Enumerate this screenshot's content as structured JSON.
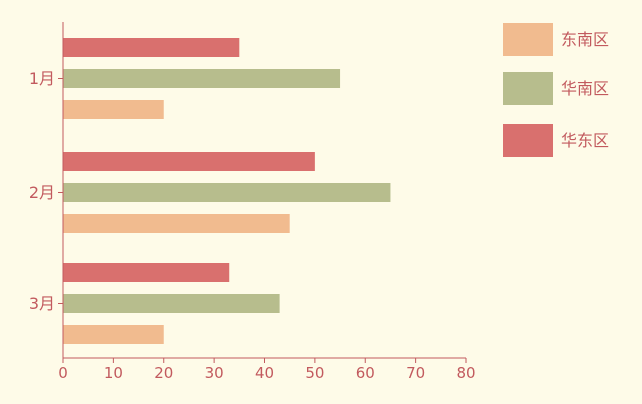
{
  "chart_data": {
    "type": "bar",
    "orientation": "horizontal",
    "categories": [
      "1月",
      "2月",
      "3月"
    ],
    "series": [
      {
        "name": "华东区",
        "color": "#d9706e",
        "values": [
          35,
          50,
          33
        ]
      },
      {
        "name": "华南区",
        "color": "#b7bd8d",
        "values": [
          55,
          65,
          43
        ]
      },
      {
        "name": "东南区",
        "color": "#f1bb8f",
        "values": [
          20,
          45,
          20
        ]
      }
    ],
    "xlim": [
      0,
      80
    ],
    "xticks": [
      0,
      10,
      20,
      30,
      40,
      50,
      60,
      70,
      80
    ],
    "grid": false,
    "legend_position": "top-right",
    "legend_order": [
      "东南区",
      "华南区",
      "华东区"
    ]
  },
  "colors": {
    "background": "#fefbe8",
    "axis": "#c25a5e",
    "text": "#c25a5e"
  }
}
